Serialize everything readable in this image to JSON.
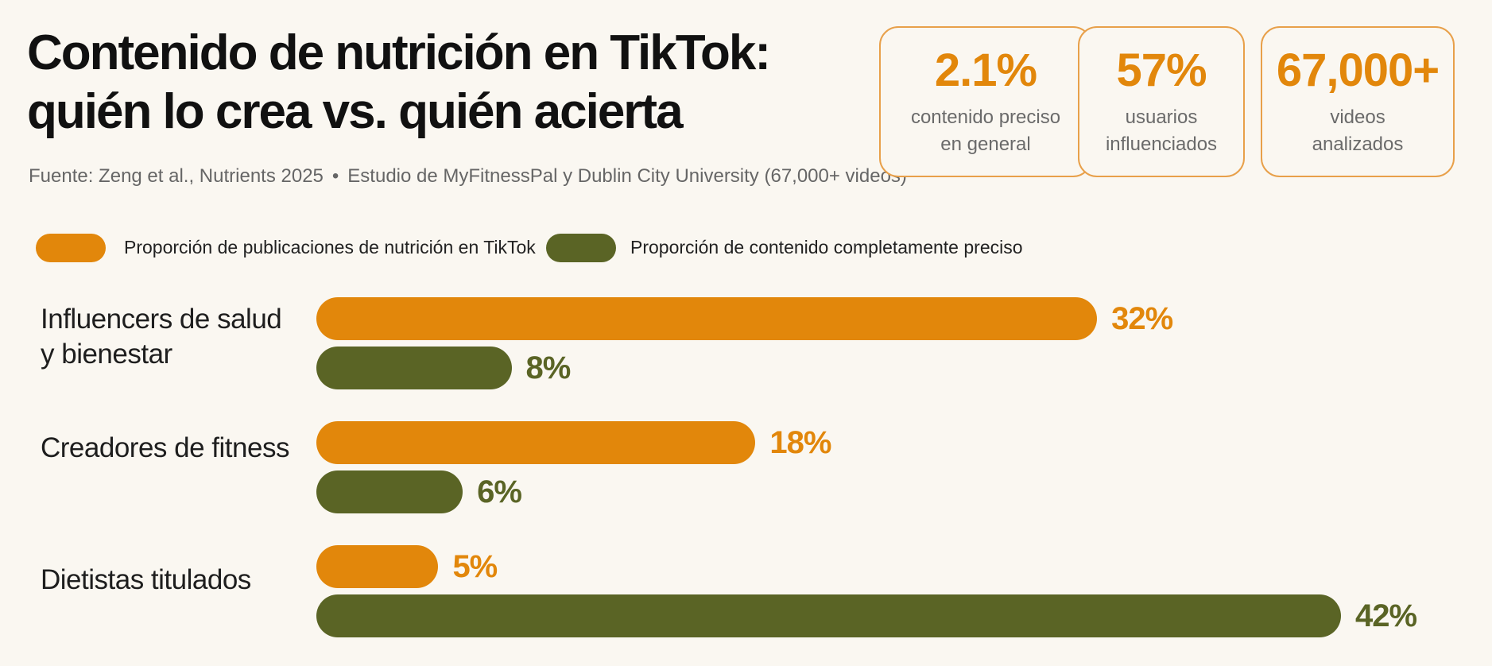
{
  "header": {
    "title_line1": "Contenido de nutrición en TikTok:",
    "title_line2": "quién lo crea vs. quién acierta",
    "source_part1": "Fuente: Zeng et al., Nutrients 2025",
    "source_sep": "•",
    "source_part2": "Estudio de MyFitnessPal y Dublin City University (67,000+ videos)"
  },
  "stats": [
    {
      "value": "2.1%",
      "label": "contenido preciso\nen general"
    },
    {
      "value": "57%",
      "label": "usuarios\ninfluenciados"
    },
    {
      "value": "67,000+",
      "label": "videos\nanalizados"
    }
  ],
  "colors": {
    "orange": "#e2870b",
    "green": "#5a6425",
    "stat_border": "#e8a04a",
    "background": "#faf7f1"
  },
  "chart_data": {
    "type": "bar",
    "orientation": "horizontal",
    "categories": [
      "Influencers de salud\ny bienestar",
      "Creadores de fitness",
      "Dietistas titulados"
    ],
    "series": [
      {
        "name": "Proporción de publicaciones de nutrición en TikTok",
        "values": [
          32,
          18,
          5
        ],
        "color": "#e2870b",
        "labels": [
          "32%",
          "18%",
          "5%"
        ]
      },
      {
        "name": "Proporción de contenido completamente preciso",
        "values": [
          8,
          6,
          42
        ],
        "color": "#5a6425",
        "labels": [
          "8%",
          "6%",
          "42%"
        ]
      }
    ],
    "unit": "%",
    "xlim": [
      0,
      42
    ],
    "legend_position": "top-left",
    "grid": false
  }
}
